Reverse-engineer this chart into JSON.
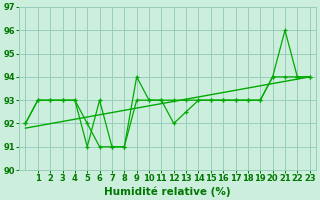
{
  "xlabel": "Humidité relative (%)",
  "xlim": [
    -0.5,
    23.5
  ],
  "ylim": [
    90,
    97
  ],
  "yticks": [
    90,
    91,
    92,
    93,
    94,
    95,
    96,
    97
  ],
  "xtick_labels": [
    "1",
    "2",
    "3",
    "4",
    "5",
    "6",
    "7",
    "8",
    "9",
    "10",
    "11",
    "12",
    "13",
    "14",
    "15",
    "16",
    "17",
    "18",
    "19",
    "20",
    "21",
    "22",
    "23"
  ],
  "bg_color": "#cceedd",
  "grid_color": "#99ccbb",
  "line_color": "#00aa00",
  "line1_x": [
    0,
    1,
    2,
    3,
    4,
    5,
    6,
    7,
    8,
    9,
    10,
    11,
    12,
    13,
    14,
    15,
    16,
    17,
    18,
    19,
    20,
    21,
    22,
    23
  ],
  "line1_y": [
    92,
    93,
    93,
    93,
    93,
    92,
    91,
    91,
    91,
    94,
    93,
    93,
    92,
    92.5,
    93,
    93,
    93,
    93,
    93,
    93,
    94,
    96,
    94,
    94
  ],
  "line2_x": [
    0,
    1,
    2,
    3,
    4,
    5,
    6,
    7,
    8,
    9,
    10,
    11,
    12,
    13,
    14,
    15,
    16,
    17,
    18,
    19,
    20,
    21,
    22,
    23
  ],
  "line2_y": [
    92,
    93,
    93,
    93,
    93,
    91,
    93,
    91,
    91,
    93,
    93,
    93,
    93,
    93,
    93,
    93,
    93,
    93,
    93,
    93,
    94,
    94,
    94,
    94
  ],
  "trend_x": [
    0,
    23
  ],
  "trend_y": [
    91.8,
    94.0
  ],
  "font_color": "#007700",
  "tick_fontsize": 6,
  "xlabel_fontsize": 7.5
}
